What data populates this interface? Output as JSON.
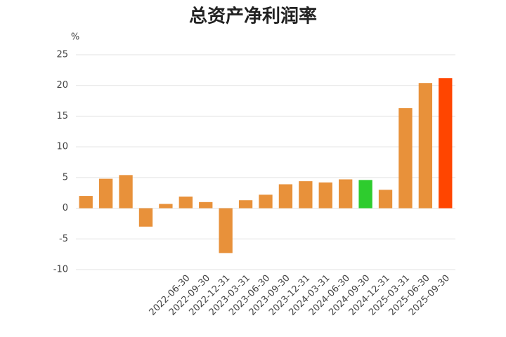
{
  "chart_data": {
    "type": "bar",
    "title": "总资产净利润率",
    "y_unit": "%",
    "categories": [
      null,
      null,
      null,
      null,
      null,
      "2022-06-30",
      "2022-09-30",
      "2022-12-31",
      "2023-03-31",
      "2023-06-30",
      "2023-09-30",
      "2023-12-31",
      "2024-03-31",
      "2024-06-30",
      "2024-09-30",
      "2024-12-31",
      "2025-03-31",
      "2025-06-30",
      "2025-09-30"
    ],
    "values": [
      2.0,
      4.8,
      5.4,
      -3.0,
      0.7,
      1.9,
      1.0,
      -7.3,
      1.3,
      2.2,
      3.9,
      4.4,
      4.2,
      4.7,
      4.6,
      3.0,
      16.3,
      20.4,
      21.2
    ],
    "colors": [
      "#e8913a",
      "#e8913a",
      "#e8913a",
      "#e8913a",
      "#e8913a",
      "#e8913a",
      "#e8913a",
      "#e8913a",
      "#e8913a",
      "#e8913a",
      "#e8913a",
      "#e8913a",
      "#e8913a",
      "#e8913a",
      "#2ecc2e",
      "#e8913a",
      "#e8913a",
      "#e8913a",
      "#ff4500"
    ],
    "ylim": [
      -10,
      25
    ],
    "yticks": [
      -10,
      -5,
      0,
      5,
      10,
      15,
      20,
      25
    ],
    "grid": true
  }
}
